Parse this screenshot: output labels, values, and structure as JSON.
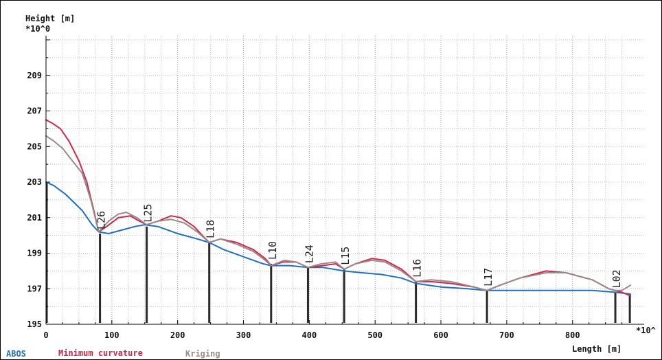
{
  "chart_data": {
    "type": "line",
    "ylabel": "Height [m]",
    "yscale_label": "*10^0",
    "xlabel": "Length [m]",
    "xscale_label": "*10^",
    "xlim": [
      0,
      890
    ],
    "ylim": [
      195,
      211
    ],
    "xticks": [
      0,
      100,
      200,
      300,
      400,
      500,
      600,
      700,
      800
    ],
    "yticks": [
      195,
      197,
      199,
      201,
      203,
      205,
      207,
      209
    ],
    "grid": true,
    "legend_position": "bottom-left",
    "series": [
      {
        "name": "ABOS",
        "color": "#1f6fc4",
        "points": [
          [
            0,
            203.0
          ],
          [
            12,
            202.8
          ],
          [
            30,
            202.3
          ],
          [
            55,
            201.4
          ],
          [
            70,
            200.6
          ],
          [
            80,
            200.2
          ],
          [
            95,
            200.1
          ],
          [
            115,
            200.3
          ],
          [
            135,
            200.5
          ],
          [
            150,
            200.6
          ],
          [
            170,
            200.5
          ],
          [
            200,
            200.1
          ],
          [
            230,
            199.8
          ],
          [
            248,
            199.6
          ],
          [
            270,
            199.2
          ],
          [
            300,
            198.8
          ],
          [
            330,
            198.4
          ],
          [
            342,
            198.3
          ],
          [
            370,
            198.3
          ],
          [
            398,
            198.2
          ],
          [
            420,
            198.2
          ],
          [
            453,
            198.0
          ],
          [
            480,
            197.9
          ],
          [
            510,
            197.8
          ],
          [
            540,
            197.6
          ],
          [
            562,
            197.3
          ],
          [
            600,
            197.1
          ],
          [
            640,
            197.0
          ],
          [
            670,
            196.9
          ],
          [
            700,
            196.9
          ],
          [
            750,
            196.9
          ],
          [
            800,
            196.9
          ],
          [
            830,
            196.9
          ],
          [
            865,
            196.8
          ],
          [
            888,
            196.7
          ]
        ]
      },
      {
        "name": "Minimum curvature",
        "color": "#d0284a",
        "points": [
          [
            0,
            206.5
          ],
          [
            10,
            206.3
          ],
          [
            22,
            206.0
          ],
          [
            35,
            205.3
          ],
          [
            50,
            204.2
          ],
          [
            62,
            203.0
          ],
          [
            72,
            201.5
          ],
          [
            80,
            200.2
          ],
          [
            92,
            200.5
          ],
          [
            110,
            201.0
          ],
          [
            128,
            201.1
          ],
          [
            142,
            200.8
          ],
          [
            153,
            200.6
          ],
          [
            170,
            200.8
          ],
          [
            190,
            201.1
          ],
          [
            205,
            201.0
          ],
          [
            225,
            200.5
          ],
          [
            240,
            199.9
          ],
          [
            248,
            199.6
          ],
          [
            265,
            199.8
          ],
          [
            290,
            199.6
          ],
          [
            315,
            199.2
          ],
          [
            333,
            198.7
          ],
          [
            342,
            198.3
          ],
          [
            360,
            198.5
          ],
          [
            380,
            198.5
          ],
          [
            398,
            198.2
          ],
          [
            420,
            198.3
          ],
          [
            440,
            198.4
          ],
          [
            453,
            198.1
          ],
          [
            470,
            198.4
          ],
          [
            495,
            198.7
          ],
          [
            515,
            198.6
          ],
          [
            540,
            198.1
          ],
          [
            562,
            197.4
          ],
          [
            585,
            197.4
          ],
          [
            615,
            197.3
          ],
          [
            650,
            197.1
          ],
          [
            670,
            196.9
          ],
          [
            690,
            197.2
          ],
          [
            720,
            197.6
          ],
          [
            760,
            198.0
          ],
          [
            790,
            197.9
          ],
          [
            830,
            197.5
          ],
          [
            855,
            197.0
          ],
          [
            865,
            196.9
          ],
          [
            875,
            196.8
          ],
          [
            888,
            196.6
          ]
        ]
      },
      {
        "name": "Kriging",
        "color": "#9a8a8a",
        "points": [
          [
            0,
            205.6
          ],
          [
            12,
            205.3
          ],
          [
            25,
            204.9
          ],
          [
            40,
            204.2
          ],
          [
            55,
            203.5
          ],
          [
            68,
            202.0
          ],
          [
            80,
            200.2
          ],
          [
            95,
            200.8
          ],
          [
            110,
            201.2
          ],
          [
            122,
            201.3
          ],
          [
            138,
            201.0
          ],
          [
            153,
            200.6
          ],
          [
            170,
            200.8
          ],
          [
            190,
            200.9
          ],
          [
            210,
            200.7
          ],
          [
            230,
            200.2
          ],
          [
            248,
            199.6
          ],
          [
            265,
            199.8
          ],
          [
            290,
            199.5
          ],
          [
            315,
            199.1
          ],
          [
            333,
            198.6
          ],
          [
            342,
            198.3
          ],
          [
            362,
            198.6
          ],
          [
            380,
            198.5
          ],
          [
            398,
            198.2
          ],
          [
            418,
            198.4
          ],
          [
            440,
            198.5
          ],
          [
            453,
            198.1
          ],
          [
            470,
            198.4
          ],
          [
            495,
            198.6
          ],
          [
            515,
            198.5
          ],
          [
            540,
            198.0
          ],
          [
            562,
            197.4
          ],
          [
            585,
            197.5
          ],
          [
            615,
            197.4
          ],
          [
            650,
            197.1
          ],
          [
            670,
            196.9
          ],
          [
            690,
            197.2
          ],
          [
            720,
            197.6
          ],
          [
            760,
            197.9
          ],
          [
            790,
            197.9
          ],
          [
            830,
            197.5
          ],
          [
            855,
            197.0
          ],
          [
            865,
            196.9
          ],
          [
            875,
            196.9
          ],
          [
            888,
            197.2
          ]
        ]
      }
    ],
    "wells": [
      {
        "name": "L26",
        "x": 82,
        "top": 200.1
      },
      {
        "name": "L25",
        "x": 153,
        "top": 200.5
      },
      {
        "name": "L18",
        "x": 248,
        "top": 199.6
      },
      {
        "name": "L10",
        "x": 342,
        "top": 198.4
      },
      {
        "name": "L24",
        "x": 398,
        "top": 198.2
      },
      {
        "name": "L15",
        "x": 453,
        "top": 198.1
      },
      {
        "name": "L16",
        "x": 562,
        "top": 197.4
      },
      {
        "name": "L17",
        "x": 670,
        "top": 196.9
      },
      {
        "name": "L02",
        "x": 865,
        "top": 196.8
      },
      {
        "name": "",
        "x": 887,
        "top": 196.7
      }
    ],
    "base_height": 195
  },
  "legend": {
    "abos": "ABOS",
    "min_curv": "Minimum curvature",
    "kriging": "Kriging"
  },
  "x_axis_title": "Length [m]",
  "x_scale_label": "*10^",
  "y_axis_title": "Height [m]",
  "y_scale_label": "*10^0"
}
